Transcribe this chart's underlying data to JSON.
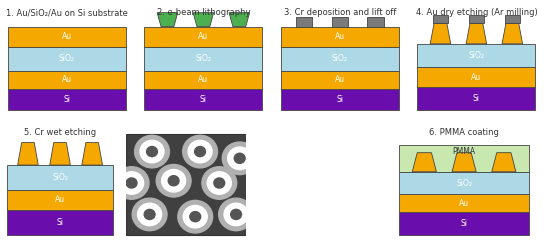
{
  "background_color": "#ffffff",
  "colors": {
    "Au": "#F5A800",
    "SiO2": "#ADD8E6",
    "Si": "#6A0DAD",
    "Cr": "#7a7a7a",
    "PMMA": "#C8E8B0",
    "resist": "#4CAF50",
    "border": "#444444"
  },
  "labels": {
    "Au": "Au",
    "SiO2": "SiO₂",
    "Si": "Si",
    "PMMA": "PMMA"
  },
  "step_titles": [
    "1. Au/SiO₂/Au on Si substrate",
    "2. e-beam lithography",
    "3. Cr deposition and lift off",
    "4. Au dry etching (Ar milling)",
    "5. Cr wet etching",
    "6. PMMA coating"
  ],
  "title_fontsize": 6.0,
  "label_fontsize": 5.5,
  "figsize": [
    5.46,
    2.44
  ],
  "dpi": 100
}
